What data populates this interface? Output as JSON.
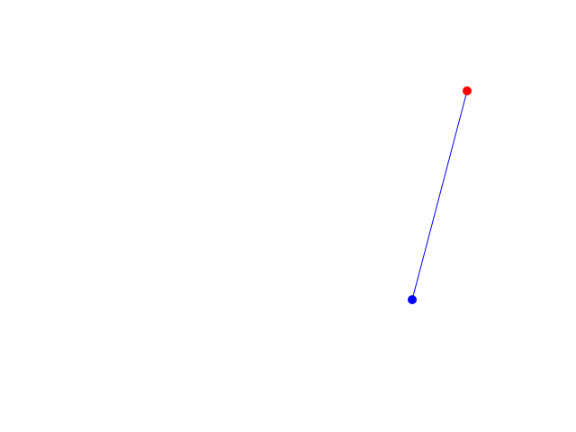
{
  "canvas": {
    "background": "#ffffff",
    "line_color": "#0000ff",
    "start_point_color": "#0000ff",
    "end_point_color": "#ff0000"
  }
}
